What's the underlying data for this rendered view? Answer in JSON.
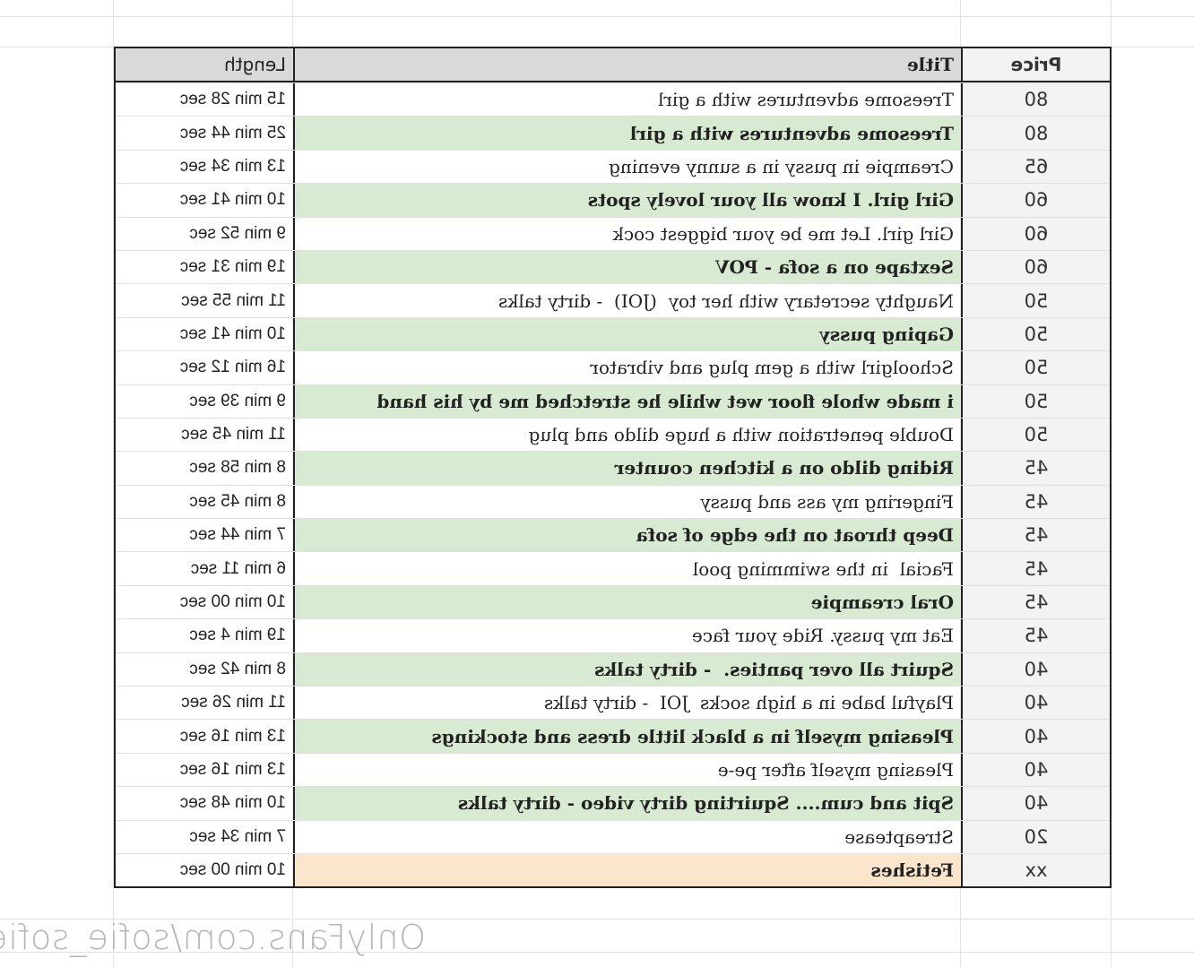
{
  "headers": {
    "price": "Price",
    "title": "Title",
    "length": "Length"
  },
  "colors": {
    "header_gray": "#d9d9d9",
    "price_bg": "#f3f3f3",
    "highlight_green": "#d9ead3",
    "highlight_peach": "#fce5cd"
  },
  "rows": [
    {
      "price": "80",
      "title": "Treesome adventures with a girl",
      "length": "15 min 28 sec",
      "style": "plain"
    },
    {
      "price": "80",
      "title": "Treesome adventures with a girl",
      "length": "25 min 44 sec",
      "style": "green"
    },
    {
      "price": "65",
      "title": "Creampie in pussy in a sunny evening",
      "length": "13 min 34 sec",
      "style": "plain"
    },
    {
      "price": "60",
      "title": "Girl girl. I know all your lovely spots",
      "length": "10 min 41 sec",
      "style": "green"
    },
    {
      "price": "60",
      "title": "Girl girl. Let me be your biggest cock",
      "length": "9 min 52 sec",
      "style": "plain"
    },
    {
      "price": "60",
      "title": "Sextape on a sofa - POV",
      "length": "19 min 31 sec",
      "style": "green"
    },
    {
      "price": "50",
      "title": "Naughty secretary with her toy  (JOI)  - dirty talks",
      "length": "11 min 55 sec",
      "style": "plain"
    },
    {
      "price": "50",
      "title": "Gaping pussy",
      "length": "10 min 41 sec",
      "style": "green"
    },
    {
      "price": "50",
      "title": "Schoolgirl with a gem plug and vibrator",
      "length": "16 min 12 sec",
      "style": "plain"
    },
    {
      "price": "50",
      "title": "i made whole floor wet while he stretched me by his hand",
      "length": "9 min 39 sec",
      "style": "green"
    },
    {
      "price": "50",
      "title": "Double penetration with a huge dildo and plug",
      "length": "11 min 45 sec",
      "style": "plain"
    },
    {
      "price": "45",
      "title": "Riding dildo on a kitchen counter",
      "length": "8 min 58 sec",
      "style": "green"
    },
    {
      "price": "45",
      "title": "Fingering my ass and pussy",
      "length": "8 min 45 sec",
      "style": "plain"
    },
    {
      "price": "45",
      "title": "Deep throat on the edge of sofa",
      "length": "7 min 44 sec",
      "style": "green"
    },
    {
      "price": "45",
      "title": "Facial  in the swimming pool",
      "length": "6 min 11 sec",
      "style": "plain"
    },
    {
      "price": "45",
      "title": "Oral creampie",
      "length": "10 min 00 sec",
      "style": "green"
    },
    {
      "price": "45",
      "title": "Eat my pussy. Ride your face",
      "length": "19 min 4 sec",
      "style": "plain"
    },
    {
      "price": "40",
      "title": "Squirt all over panties.  - dirty talks",
      "length": "8 min 42 sec",
      "style": "green"
    },
    {
      "price": "40",
      "title": "Playful babe in a high socks  JOI  - dirty talks",
      "length": "11 min 26 sec",
      "style": "plain"
    },
    {
      "price": "40",
      "title": "Pleasing myself in a black little dress and stockings",
      "length": "13 min 16 sec",
      "style": "green"
    },
    {
      "price": "40",
      "title": "Pleasing myself after pe-e",
      "length": "13 min 16 sec",
      "style": "plain"
    },
    {
      "price": "40",
      "title": "Spit and cum.... Squirting dirty video - dirty talks",
      "length": "10 min 48 sec",
      "style": "green"
    },
    {
      "price": "20",
      "title": "Streaptease",
      "length": "7 min 34 sec",
      "style": "plain"
    },
    {
      "price": "xx",
      "title": "Fetishes",
      "length": "10 min 00 sec",
      "style": "peach"
    }
  ],
  "watermark": "OnlyFans.com/sofie_sofie"
}
